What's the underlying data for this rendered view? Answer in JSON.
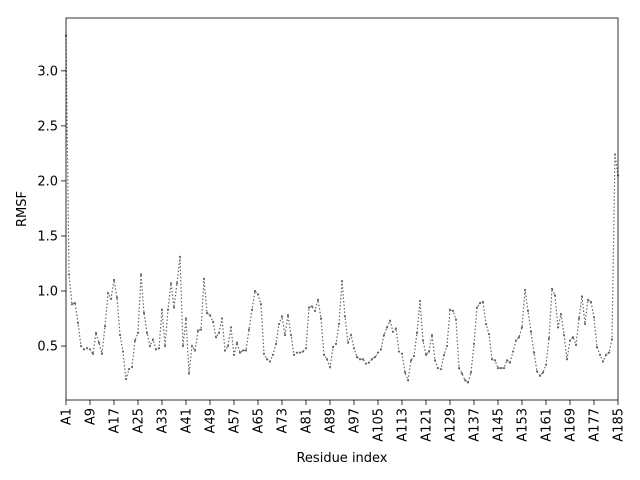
{
  "chart_data": {
    "type": "line",
    "x_label": "Residue index",
    "y_label": "RMSF",
    "categories": [
      "A1",
      null,
      null,
      null,
      null,
      null,
      null,
      null,
      "A9",
      null,
      null,
      null,
      null,
      null,
      null,
      null,
      "A17",
      null,
      null,
      null,
      null,
      null,
      null,
      null,
      "A25",
      null,
      null,
      null,
      null,
      null,
      null,
      null,
      "A33",
      null,
      null,
      null,
      null,
      null,
      null,
      null,
      "A41",
      null,
      null,
      null,
      null,
      null,
      null,
      null,
      "A49",
      null,
      null,
      null,
      null,
      null,
      null,
      null,
      "A57",
      null,
      null,
      null,
      null,
      null,
      null,
      null,
      "A65",
      null,
      null,
      null,
      null,
      null,
      null,
      null,
      "A73",
      null,
      null,
      null,
      null,
      null,
      null,
      null,
      "A81",
      null,
      null,
      null,
      null,
      null,
      null,
      null,
      "A89",
      null,
      null,
      null,
      null,
      null,
      null,
      null,
      "A97",
      null,
      null,
      null,
      null,
      null,
      null,
      null,
      "A105",
      null,
      null,
      null,
      null,
      null,
      null,
      null,
      "A113",
      null,
      null,
      null,
      null,
      null,
      null,
      null,
      "A121",
      null,
      null,
      null,
      null,
      null,
      null,
      null,
      "A129",
      null,
      null,
      null,
      null,
      null,
      null,
      null,
      "A137",
      null,
      null,
      null,
      null,
      null,
      null,
      null,
      "A145",
      null,
      null,
      null,
      null,
      null,
      null,
      null,
      "A153",
      null,
      null,
      null,
      null,
      null,
      null,
      null,
      "A161",
      null,
      null,
      null,
      null,
      null,
      null,
      null,
      "A169",
      null,
      null,
      null,
      null,
      null,
      null,
      null,
      "A177",
      null,
      null,
      null,
      null,
      null,
      null,
      null,
      "A185"
    ],
    "values": [
      3.32,
      1.15,
      0.88,
      0.89,
      0.71,
      0.5,
      0.47,
      0.48,
      0.47,
      0.43,
      0.62,
      0.53,
      0.43,
      0.68,
      0.98,
      0.93,
      1.1,
      0.94,
      0.6,
      0.45,
      0.2,
      0.29,
      0.31,
      0.55,
      0.62,
      1.15,
      0.8,
      0.62,
      0.5,
      0.56,
      0.47,
      0.48,
      0.83,
      0.5,
      0.83,
      1.07,
      0.85,
      1.07,
      1.31,
      0.5,
      0.75,
      0.25,
      0.5,
      0.46,
      0.64,
      0.65,
      1.11,
      0.8,
      0.78,
      0.72,
      0.58,
      0.62,
      0.75,
      0.46,
      0.5,
      0.67,
      0.42,
      0.53,
      0.44,
      0.46,
      0.46,
      0.65,
      0.83,
      1.0,
      0.97,
      0.88,
      0.43,
      0.38,
      0.36,
      0.42,
      0.52,
      0.7,
      0.77,
      0.6,
      0.78,
      0.6,
      0.42,
      0.44,
      0.44,
      0.45,
      0.48,
      0.85,
      0.86,
      0.82,
      0.92,
      0.75,
      0.42,
      0.38,
      0.31,
      0.49,
      0.52,
      0.7,
      1.09,
      0.77,
      0.53,
      0.6,
      0.48,
      0.4,
      0.38,
      0.38,
      0.34,
      0.35,
      0.38,
      0.4,
      0.44,
      0.47,
      0.6,
      0.67,
      0.73,
      0.63,
      0.66,
      0.45,
      0.43,
      0.26,
      0.19,
      0.37,
      0.41,
      0.62,
      0.91,
      0.55,
      0.42,
      0.45,
      0.6,
      0.37,
      0.3,
      0.29,
      0.42,
      0.5,
      0.83,
      0.82,
      0.74,
      0.3,
      0.25,
      0.19,
      0.17,
      0.26,
      0.52,
      0.85,
      0.89,
      0.9,
      0.7,
      0.61,
      0.38,
      0.37,
      0.3,
      0.3,
      0.3,
      0.37,
      0.35,
      0.45,
      0.55,
      0.58,
      0.67,
      1.01,
      0.82,
      0.63,
      0.44,
      0.27,
      0.23,
      0.26,
      0.33,
      0.57,
      1.02,
      0.96,
      0.67,
      0.79,
      0.6,
      0.38,
      0.55,
      0.58,
      0.51,
      0.75,
      0.95,
      0.7,
      0.92,
      0.9,
      0.76,
      0.49,
      0.42,
      0.36,
      0.42,
      0.44,
      0.56,
      2.24,
      2.05
    ],
    "color": "#666666",
    "line_style": "dotted",
    "ylim": [
      0.01,
      3.48
    ],
    "yticks": [
      0.5,
      {
        "value": 1.0,
        "label": "1.0"
      },
      1.5,
      {
        "value": 2.0,
        "label": "2.0"
      },
      2.5,
      {
        "value": 3.0,
        "label": "3.0"
      }
    ],
    "grid": false
  }
}
